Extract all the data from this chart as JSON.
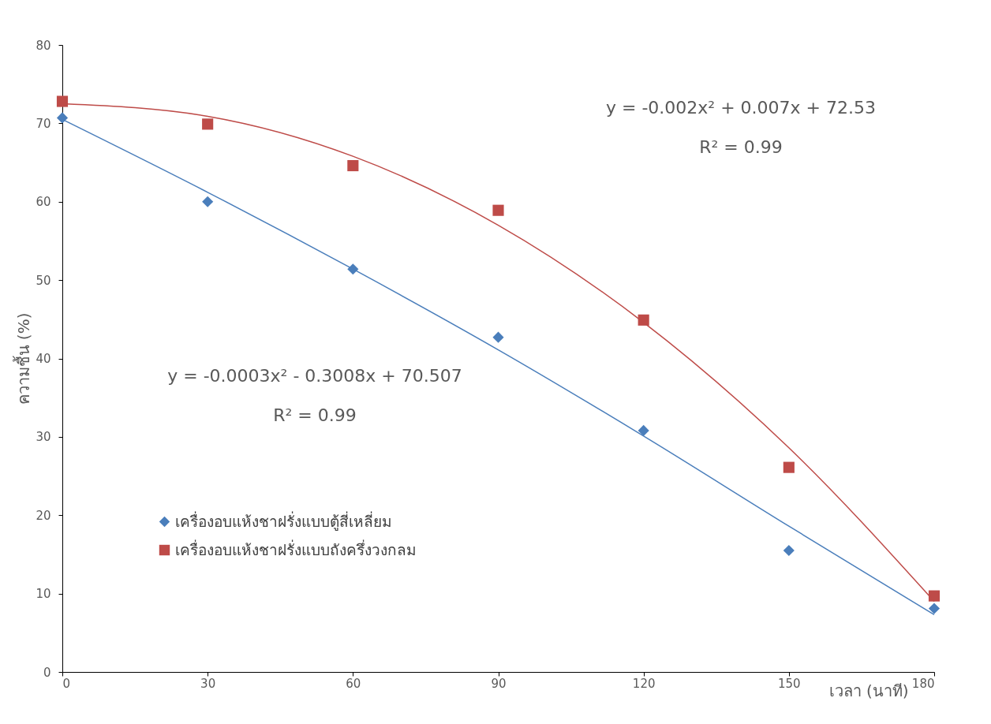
{
  "chart_data": {
    "type": "scatter",
    "xlabel": "เวลา (นาที)",
    "ylabel": "ความชื้น (%)",
    "x": [
      0,
      30,
      60,
      90,
      120,
      150,
      180
    ],
    "series": [
      {
        "name": "เครื่องอบแห้งชาฝรั่งแบบตู้สี่เหลี่ยม",
        "color": "#4a7ebb",
        "marker": "diamond",
        "values": [
          70.7,
          60.0,
          51.4,
          42.7,
          30.8,
          15.5,
          8.1
        ]
      },
      {
        "name": "เครื่องอบแห้งชาฝรั่งแบบถังครึ่งวงกลม",
        "color": "#be4b48",
        "marker": "square",
        "values": [
          72.8,
          69.9,
          64.6,
          58.9,
          44.9,
          26.1,
          9.7
        ]
      },
      {
        "type": "line",
        "color": "#4a7ebb",
        "x": [
          0,
          30,
          60,
          90,
          120,
          150,
          180
        ],
        "values": [
          70.5,
          61.2,
          51.4,
          41.1,
          30.1,
          18.6,
          7.3
        ]
      },
      {
        "type": "line",
        "color": "#be4b48",
        "x": [
          0,
          30,
          60,
          90,
          120,
          150,
          180
        ],
        "values": [
          72.5,
          70.9,
          65.8,
          57.0,
          44.6,
          28.6,
          9.0
        ]
      }
    ],
    "annotations": [
      "y = -0.002x² + 0.007x + 72.53",
      "R² = 0.99",
      "y = -0.0003x² - 0.3008x + 70.507",
      "R² = 0.99"
    ],
    "xlim": [
      0,
      180
    ],
    "xticks": [
      0,
      30,
      60,
      90,
      120,
      150,
      180
    ],
    "ylim": [
      0,
      80
    ],
    "yticks": [
      0,
      10,
      20,
      30,
      40,
      50,
      60,
      70,
      80
    ],
    "grid": false,
    "legend": "bottom left"
  }
}
